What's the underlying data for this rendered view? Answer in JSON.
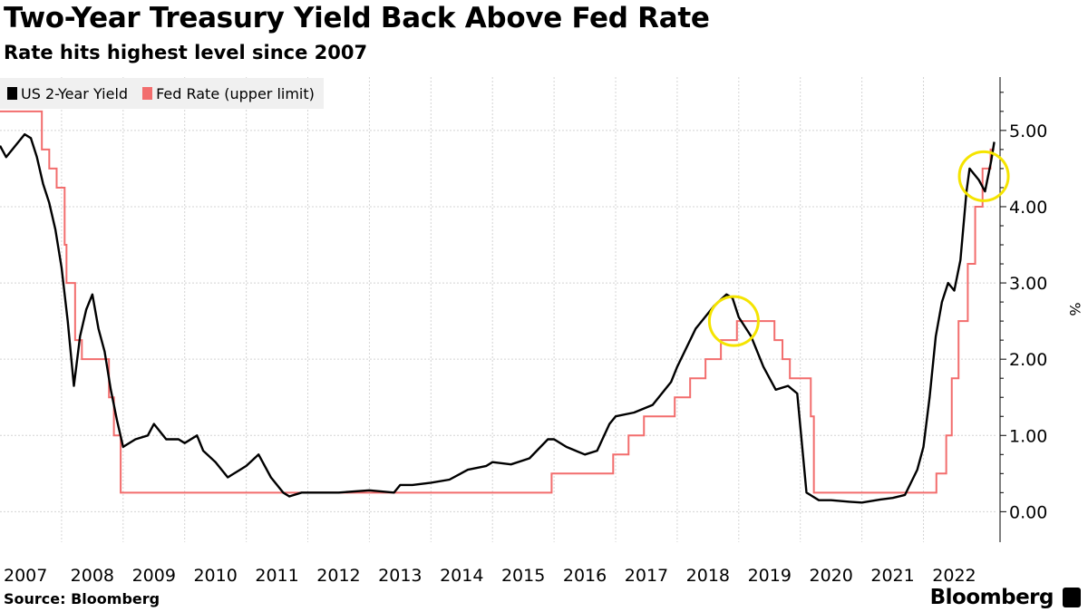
{
  "title": "Two-Year Treasury Yield Back Above Fed Rate",
  "subtitle": "Rate hits highest level since 2007",
  "source": "Source: Bloomberg",
  "brand": "Bloomberg",
  "chart_data": {
    "type": "line",
    "title": "Two-Year Treasury Yield Back Above Fed Rate",
    "subtitle": "Rate hits highest level since 2007",
    "ylabel": "%",
    "ylim": [
      -0.4,
      5.7
    ],
    "xlim": [
      2007.0,
      2023.2
    ],
    "x_tick_labels": [
      "2007",
      "2008",
      "2009",
      "2010",
      "2011",
      "2012",
      "2013",
      "2014",
      "2015",
      "2016",
      "2017",
      "2018",
      "2019",
      "2020",
      "2021",
      "2022"
    ],
    "y_ticks": [
      0,
      1,
      2,
      3,
      4,
      5
    ],
    "y_tick_labels": [
      "0.00",
      "1.00",
      "2.00",
      "3.00",
      "4.00",
      "5.00"
    ],
    "y_axis_side": "right",
    "grid": true,
    "legend_position": "top-left",
    "series": [
      {
        "name": "US 2-Year Yield",
        "color": "#000000",
        "x": [
          2007.0,
          2007.1,
          2007.2,
          2007.3,
          2007.4,
          2007.5,
          2007.6,
          2007.7,
          2007.8,
          2007.9,
          2008.0,
          2008.1,
          2008.2,
          2008.3,
          2008.4,
          2008.5,
          2008.6,
          2008.7,
          2008.8,
          2008.9,
          2009.0,
          2009.2,
          2009.4,
          2009.5,
          2009.7,
          2009.9,
          2010.0,
          2010.2,
          2010.3,
          2010.5,
          2010.7,
          2010.9,
          2011.0,
          2011.2,
          2011.4,
          2011.6,
          2011.7,
          2011.9,
          2012.0,
          2012.5,
          2013.0,
          2013.4,
          2013.5,
          2013.7,
          2014.0,
          2014.3,
          2014.6,
          2014.9,
          2015.0,
          2015.3,
          2015.6,
          2015.9,
          2016.0,
          2016.2,
          2016.5,
          2016.7,
          2016.9,
          2017.0,
          2017.3,
          2017.6,
          2017.9,
          2018.0,
          2018.3,
          2018.6,
          2018.8,
          2018.9,
          2019.0,
          2019.2,
          2019.4,
          2019.6,
          2019.8,
          2019.95,
          2020.1,
          2020.2,
          2020.3,
          2020.5,
          2020.8,
          2021.0,
          2021.3,
          2021.5,
          2021.7,
          2021.9,
          2022.0,
          2022.1,
          2022.2,
          2022.3,
          2022.4,
          2022.5,
          2022.6,
          2022.7,
          2022.75,
          2022.8,
          2022.9,
          2023.0,
          2023.1,
          2023.15
        ],
        "values": [
          4.8,
          4.65,
          4.75,
          4.85,
          4.95,
          4.9,
          4.65,
          4.3,
          4.05,
          3.7,
          3.2,
          2.5,
          1.65,
          2.3,
          2.65,
          2.85,
          2.4,
          2.1,
          1.6,
          1.2,
          0.85,
          0.95,
          1.0,
          1.15,
          0.95,
          0.95,
          0.9,
          1.0,
          0.8,
          0.65,
          0.45,
          0.55,
          0.6,
          0.75,
          0.45,
          0.25,
          0.2,
          0.25,
          0.25,
          0.25,
          0.28,
          0.25,
          0.35,
          0.35,
          0.38,
          0.42,
          0.55,
          0.6,
          0.65,
          0.62,
          0.7,
          0.95,
          0.95,
          0.85,
          0.75,
          0.8,
          1.15,
          1.25,
          1.3,
          1.4,
          1.7,
          1.9,
          2.4,
          2.7,
          2.85,
          2.8,
          2.55,
          2.3,
          1.9,
          1.6,
          1.65,
          1.55,
          0.25,
          0.2,
          0.15,
          0.15,
          0.13,
          0.12,
          0.16,
          0.18,
          0.22,
          0.55,
          0.85,
          1.5,
          2.3,
          2.75,
          3.0,
          2.9,
          3.3,
          4.2,
          4.5,
          4.45,
          4.35,
          4.2,
          4.6,
          4.85
        ]
      },
      {
        "name": "Fed Rate (upper limit)",
        "color": "#f26d6d",
        "x": [
          2007.0,
          2007.68,
          2007.8,
          2007.92,
          2008.05,
          2008.08,
          2008.22,
          2008.33,
          2008.77,
          2008.85,
          2008.96,
          2015.96,
          2016.96,
          2017.21,
          2017.46,
          2017.96,
          2018.21,
          2018.46,
          2018.71,
          2018.97,
          2019.58,
          2019.71,
          2019.83,
          2020.17,
          2020.22,
          2022.21,
          2022.37,
          2022.46,
          2022.57,
          2022.72,
          2022.84,
          2022.96,
          2023.09
        ],
        "values": [
          5.25,
          4.75,
          4.5,
          4.25,
          3.5,
          3.0,
          2.25,
          2.0,
          1.5,
          1.0,
          0.25,
          0.5,
          0.75,
          1.0,
          1.25,
          1.5,
          1.75,
          2.0,
          2.25,
          2.5,
          2.25,
          2.0,
          1.75,
          1.25,
          0.25,
          0.5,
          1.0,
          1.75,
          2.5,
          3.25,
          4.0,
          4.5,
          4.75
        ]
      }
    ],
    "annotations": [
      {
        "type": "circle",
        "x": 2018.92,
        "y": 2.5,
        "color": "#f5e400"
      },
      {
        "type": "circle",
        "x": 2022.98,
        "y": 4.4,
        "color": "#f5e400"
      }
    ]
  }
}
